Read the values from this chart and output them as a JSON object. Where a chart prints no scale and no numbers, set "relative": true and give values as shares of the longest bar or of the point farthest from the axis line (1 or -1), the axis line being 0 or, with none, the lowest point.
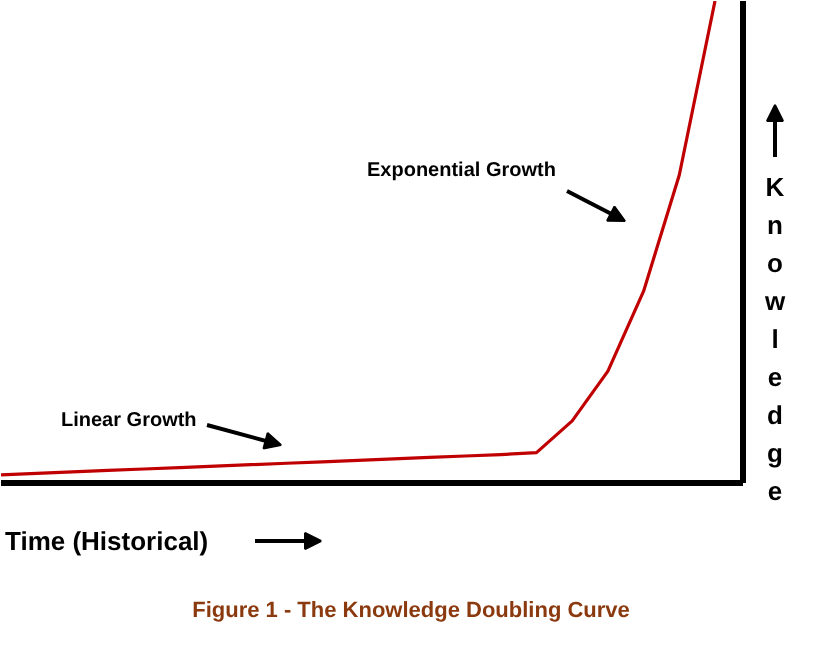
{
  "chart_data": {
    "type": "line",
    "title": "Figure 1 - The Knowledge Doubling Curve",
    "xlabel": "Time (Historical)",
    "ylabel": "Knowledge",
    "relative": true,
    "categories": [
      null,
      null,
      null,
      null,
      null,
      null,
      null,
      null,
      null,
      null,
      null,
      null,
      null,
      null,
      null,
      null,
      null,
      null,
      null,
      null,
      null
    ],
    "series": [
      {
        "color": "#c00000",
        "values": [
          0.017,
          0.02,
          0.023,
          0.026,
          0.029,
          0.032,
          0.035,
          0.038,
          0.041,
          0.044,
          0.047,
          0.05,
          0.053,
          0.056,
          0.059,
          0.063,
          0.129,
          0.232,
          0.398,
          0.639,
          1.0
        ]
      }
    ],
    "annotations": [
      "Exponential Growth",
      "Linear Growth"
    ]
  }
}
